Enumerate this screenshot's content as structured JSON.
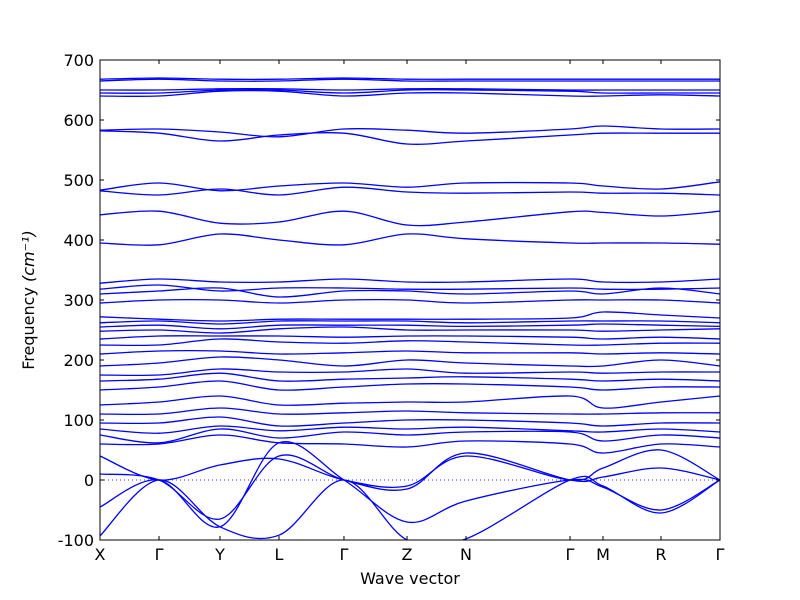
{
  "chart_data": {
    "type": "line",
    "title": "",
    "xlabel": "Wave vector",
    "ylabel": "Frequency",
    "ylabel_unit": "(cm⁻¹)",
    "ylim": [
      -100,
      700
    ],
    "yticks": [
      -100,
      0,
      100,
      200,
      300,
      400,
      500,
      600,
      700
    ],
    "high_symmetry_points": [
      {
        "label": "X",
        "x": 0.0
      },
      {
        "label": "Γ",
        "x": 0.0952
      },
      {
        "label": "Y",
        "x": 0.1935
      },
      {
        "label": "L",
        "x": 0.2887
      },
      {
        "label": "Γ",
        "x": 0.3935
      },
      {
        "label": "Z",
        "x": 0.4952
      },
      {
        "label": "N",
        "x": 0.5903
      },
      {
        "label": "Γ",
        "x": 0.7581
      },
      {
        "label": "M",
        "x": 0.8113
      },
      {
        "label": "R",
        "x": 0.9048
      },
      {
        "label": "Γ",
        "x": 1.0
      }
    ],
    "grid": false,
    "zero_line": true,
    "series_color": "#0000ff",
    "zero_line_color": "#3333ff",
    "series": [
      {
        "x": [
          0,
          0.0952,
          0.1935,
          0.2887,
          0.3935,
          0.4952,
          0.5903,
          0.7581,
          0.8113,
          0.9048,
          1
        ],
        "y": [
          -93,
          0,
          -78,
          -92,
          0,
          -100,
          -98,
          0,
          -10,
          -55,
          0
        ]
      },
      {
        "x": [
          0,
          0.0952,
          0.1935,
          0.2887,
          0.3935,
          0.4952,
          0.5903,
          0.7581,
          0.8113,
          0.9048,
          1
        ],
        "y": [
          -45,
          0,
          -78,
          62,
          0,
          -70,
          -35,
          0,
          -12,
          -50,
          0
        ]
      },
      {
        "x": [
          0,
          0.0952,
          0.1935,
          0.2887,
          0.3935,
          0.4952,
          0.5903,
          0.7581,
          0.8113,
          0.9048,
          1
        ],
        "y": [
          10,
          0,
          -65,
          40,
          0,
          -15,
          45,
          0,
          5,
          20,
          0
        ]
      },
      {
        "x": [
          0,
          0.0952,
          0.1935,
          0.2887,
          0.3935,
          0.4952,
          0.5903,
          0.7581,
          0.8113,
          0.9048,
          1
        ],
        "y": [
          40,
          0,
          25,
          35,
          0,
          -10,
          40,
          0,
          20,
          50,
          0
        ]
      },
      {
        "x": [
          0,
          0.0952,
          0.1935,
          0.2887,
          0.3935,
          0.4952,
          0.5903,
          0.7581,
          0.8113,
          0.9048,
          1
        ],
        "y": [
          60,
          60,
          75,
          62,
          60,
          55,
          65,
          60,
          45,
          60,
          55
        ]
      },
      {
        "x": [
          0,
          0.0952,
          0.1935,
          0.2887,
          0.3935,
          0.4952,
          0.5903,
          0.7581,
          0.8113,
          0.9048,
          1
        ],
        "y": [
          75,
          62,
          85,
          70,
          80,
          75,
          80,
          80,
          65,
          75,
          70
        ]
      },
      {
        "x": [
          0,
          0.0952,
          0.1935,
          0.2887,
          0.3935,
          0.4952,
          0.5903,
          0.7581,
          0.8113,
          0.9048,
          1
        ],
        "y": [
          85,
          78,
          90,
          82,
          88,
          85,
          88,
          82,
          80,
          85,
          80
        ]
      },
      {
        "x": [
          0,
          0.0952,
          0.1935,
          0.2887,
          0.3935,
          0.4952,
          0.5903,
          0.7581,
          0.8113,
          0.9048,
          1
        ],
        "y": [
          95,
          95,
          105,
          90,
          95,
          100,
          100,
          95,
          90,
          95,
          95
        ]
      },
      {
        "x": [
          0,
          0.0952,
          0.1935,
          0.2887,
          0.3935,
          0.4952,
          0.5903,
          0.7581,
          0.8113,
          0.9048,
          1
        ],
        "y": [
          110,
          110,
          120,
          110,
          112,
          115,
          112,
          110,
          110,
          112,
          112
        ]
      },
      {
        "x": [
          0,
          0.0952,
          0.1935,
          0.2887,
          0.3935,
          0.4952,
          0.5903,
          0.7581,
          0.8113,
          0.9048,
          1
        ],
        "y": [
          125,
          130,
          140,
          125,
          128,
          130,
          130,
          140,
          120,
          130,
          140
        ]
      },
      {
        "x": [
          0,
          0.0952,
          0.1935,
          0.2887,
          0.3935,
          0.4952,
          0.5903,
          0.7581,
          0.8113,
          0.9048,
          1
        ],
        "y": [
          150,
          155,
          165,
          150,
          155,
          160,
          160,
          155,
          150,
          155,
          155
        ]
      },
      {
        "x": [
          0,
          0.0952,
          0.1935,
          0.2887,
          0.3935,
          0.4952,
          0.5903,
          0.7581,
          0.8113,
          0.9048,
          1
        ],
        "y": [
          165,
          168,
          178,
          165,
          168,
          170,
          172,
          168,
          165,
          168,
          165
        ]
      },
      {
        "x": [
          0,
          0.0952,
          0.1935,
          0.2887,
          0.3935,
          0.4952,
          0.5903,
          0.7581,
          0.8113,
          0.9048,
          1
        ],
        "y": [
          175,
          175,
          185,
          180,
          180,
          185,
          178,
          180,
          178,
          180,
          180
        ]
      },
      {
        "x": [
          0,
          0.0952,
          0.1935,
          0.2887,
          0.3935,
          0.4952,
          0.5903,
          0.7581,
          0.8113,
          0.9048,
          1
        ],
        "y": [
          190,
          195,
          205,
          200,
          190,
          200,
          195,
          190,
          190,
          200,
          190
        ]
      },
      {
        "x": [
          0,
          0.0952,
          0.1935,
          0.2887,
          0.3935,
          0.4952,
          0.5903,
          0.7581,
          0.8113,
          0.9048,
          1
        ],
        "y": [
          210,
          215,
          215,
          210,
          212,
          215,
          212,
          212,
          210,
          212,
          210
        ]
      },
      {
        "x": [
          0,
          0.0952,
          0.1935,
          0.2887,
          0.3935,
          0.4952,
          0.5903,
          0.7581,
          0.8113,
          0.9048,
          1
        ],
        "y": [
          225,
          225,
          235,
          230,
          228,
          232,
          230,
          225,
          225,
          228,
          228
        ]
      },
      {
        "x": [
          0,
          0.0952,
          0.1935,
          0.2887,
          0.3935,
          0.4952,
          0.5903,
          0.7581,
          0.8113,
          0.9048,
          1
        ],
        "y": [
          235,
          240,
          240,
          240,
          238,
          240,
          240,
          238,
          235,
          238,
          235
        ]
      },
      {
        "x": [
          0,
          0.0952,
          0.1935,
          0.2887,
          0.3935,
          0.4952,
          0.5903,
          0.7581,
          0.8113,
          0.9048,
          1
        ],
        "y": [
          248,
          250,
          245,
          252,
          255,
          250,
          250,
          250,
          248,
          250,
          252
        ]
      },
      {
        "x": [
          0,
          0.0952,
          0.1935,
          0.2887,
          0.3935,
          0.4952,
          0.5903,
          0.7581,
          0.8113,
          0.9048,
          1
        ],
        "y": [
          255,
          258,
          252,
          258,
          258,
          258,
          256,
          258,
          260,
          258,
          256
        ]
      },
      {
        "x": [
          0,
          0.0952,
          0.1935,
          0.2887,
          0.3935,
          0.4952,
          0.5903,
          0.7581,
          0.8113,
          0.9048,
          1
        ],
        "y": [
          262,
          265,
          260,
          265,
          265,
          265,
          262,
          265,
          265,
          265,
          262
        ]
      },
      {
        "x": [
          0,
          0.0952,
          0.1935,
          0.2887,
          0.3935,
          0.4952,
          0.5903,
          0.7581,
          0.8113,
          0.9048,
          1
        ],
        "y": [
          272,
          268,
          265,
          268,
          268,
          268,
          268,
          270,
          280,
          275,
          270
        ]
      },
      {
        "x": [
          0,
          0.0952,
          0.1935,
          0.2887,
          0.3935,
          0.4952,
          0.5903,
          0.7581,
          0.8113,
          0.9048,
          1
        ],
        "y": [
          295,
          300,
          300,
          295,
          300,
          300,
          295,
          300,
          300,
          300,
          295
        ]
      },
      {
        "x": [
          0,
          0.0952,
          0.1935,
          0.2887,
          0.3935,
          0.4952,
          0.5903,
          0.7581,
          0.8113,
          0.9048,
          1
        ],
        "y": [
          310,
          315,
          320,
          305,
          315,
          315,
          310,
          315,
          310,
          320,
          310
        ]
      },
      {
        "x": [
          0,
          0.0952,
          0.1935,
          0.2887,
          0.3935,
          0.4952,
          0.5903,
          0.7581,
          0.8113,
          0.9048,
          1
        ],
        "y": [
          318,
          325,
          315,
          320,
          320,
          318,
          318,
          320,
          318,
          318,
          320
        ]
      },
      {
        "x": [
          0,
          0.0952,
          0.1935,
          0.2887,
          0.3935,
          0.4952,
          0.5903,
          0.7581,
          0.8113,
          0.9048,
          1
        ],
        "y": [
          328,
          335,
          330,
          330,
          335,
          330,
          330,
          335,
          330,
          330,
          335
        ]
      },
      {
        "x": [
          0,
          0.0952,
          0.1935,
          0.2887,
          0.3935,
          0.4952,
          0.5903,
          0.7581,
          0.8113,
          0.9048,
          1
        ],
        "y": [
          395,
          392,
          410,
          400,
          392,
          410,
          402,
          395,
          395,
          395,
          393
        ]
      },
      {
        "x": [
          0,
          0.0952,
          0.1935,
          0.2887,
          0.3935,
          0.4952,
          0.5903,
          0.7581,
          0.8113,
          0.9048,
          1
        ],
        "y": [
          442,
          448,
          428,
          430,
          448,
          425,
          430,
          447,
          446,
          440,
          448
        ]
      },
      {
        "x": [
          0,
          0.0952,
          0.1935,
          0.2887,
          0.3935,
          0.4952,
          0.5903,
          0.7581,
          0.8113,
          0.9048,
          1
        ],
        "y": [
          482,
          475,
          485,
          475,
          488,
          480,
          478,
          480,
          478,
          478,
          475
        ]
      },
      {
        "x": [
          0,
          0.0952,
          0.1935,
          0.2887,
          0.3935,
          0.4952,
          0.5903,
          0.7581,
          0.8113,
          0.9048,
          1
        ],
        "y": [
          483,
          495,
          482,
          490,
          495,
          488,
          495,
          495,
          490,
          485,
          497
        ]
      },
      {
        "x": [
          0,
          0.0952,
          0.1935,
          0.2887,
          0.3935,
          0.4952,
          0.5903,
          0.7581,
          0.8113,
          0.9048,
          1
        ],
        "y": [
          582,
          578,
          565,
          575,
          578,
          560,
          565,
          575,
          578,
          578,
          578
        ]
      },
      {
        "x": [
          0,
          0.0952,
          0.1935,
          0.2887,
          0.3935,
          0.4952,
          0.5903,
          0.7581,
          0.8113,
          0.9048,
          1
        ],
        "y": [
          583,
          585,
          580,
          572,
          585,
          583,
          578,
          585,
          590,
          585,
          585
        ]
      },
      {
        "x": [
          0,
          0.0952,
          0.1935,
          0.2887,
          0.3935,
          0.4952,
          0.5903,
          0.7581,
          0.8113,
          0.9048,
          1
        ],
        "y": [
          640,
          640,
          648,
          648,
          640,
          645,
          645,
          640,
          640,
          642,
          640
        ]
      },
      {
        "x": [
          0,
          0.0952,
          0.1935,
          0.2887,
          0.3935,
          0.4952,
          0.5903,
          0.7581,
          0.8113,
          0.9048,
          1
        ],
        "y": [
          645,
          645,
          650,
          650,
          645,
          650,
          650,
          648,
          645,
          645,
          645
        ]
      },
      {
        "x": [
          0,
          0.0952,
          0.1935,
          0.2887,
          0.3935,
          0.4952,
          0.5903,
          0.7581,
          0.8113,
          0.9048,
          1
        ],
        "y": [
          650,
          650,
          652,
          652,
          650,
          652,
          652,
          650,
          650,
          650,
          650
        ]
      },
      {
        "x": [
          0,
          0.0952,
          0.1935,
          0.2887,
          0.3935,
          0.4952,
          0.5903,
          0.7581,
          0.8113,
          0.9048,
          1
        ],
        "y": [
          665,
          668,
          665,
          665,
          668,
          665,
          665,
          665,
          665,
          665,
          665
        ]
      },
      {
        "x": [
          0,
          0.0952,
          0.1935,
          0.2887,
          0.3935,
          0.4952,
          0.5903,
          0.7581,
          0.8113,
          0.9048,
          1
        ],
        "y": [
          668,
          670,
          668,
          668,
          670,
          668,
          668,
          668,
          668,
          668,
          668
        ]
      }
    ]
  }
}
